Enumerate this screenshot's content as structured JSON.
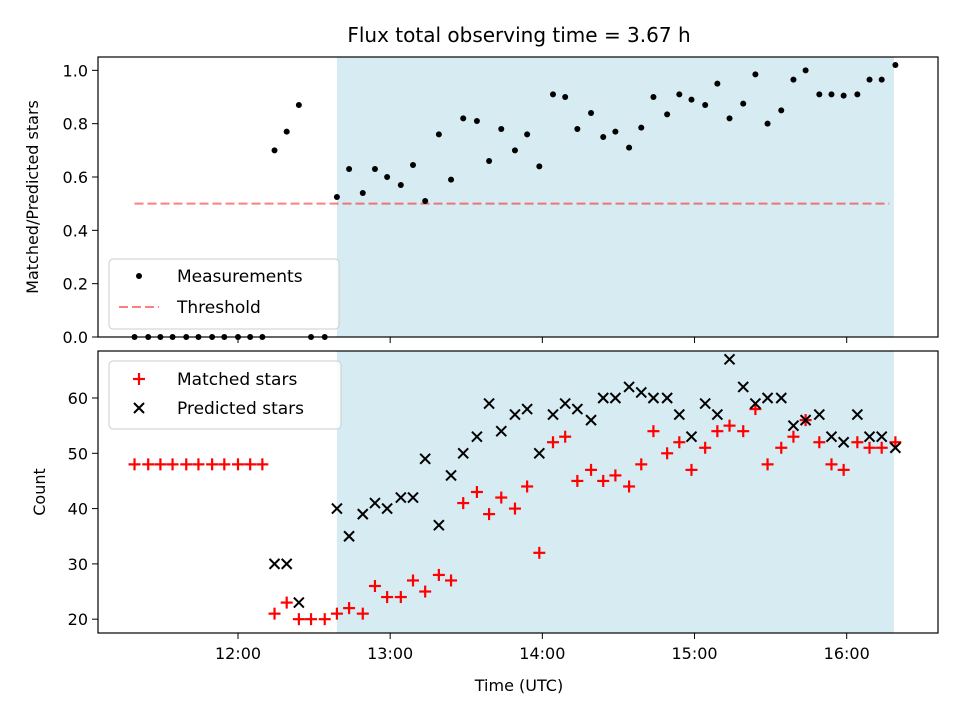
{
  "title": "Flux total observing time = 3.67 h",
  "colors": {
    "highlight": "#add8e6",
    "measurement": "#000000",
    "threshold": "#ff0000",
    "matched": "#ff0000",
    "predicted": "#000000"
  },
  "chart_data": [
    {
      "type": "scatter",
      "panel": "top",
      "ylabel": "Matched/Predicted stars",
      "xlim": [
        11.08,
        16.6
      ],
      "ylim": [
        0,
        1.05
      ],
      "yticks": [
        0.0,
        0.2,
        0.4,
        0.6,
        0.8,
        1.0
      ],
      "ytick_labels": [
        "0.0",
        "0.2",
        "0.4",
        "0.6",
        "0.8",
        "1.0"
      ],
      "xticks": [
        12,
        13,
        14,
        15,
        16
      ],
      "highlight_span": [
        12.65,
        16.31
      ],
      "legend": {
        "location": "lower-left",
        "entries": [
          "Measurements",
          "Threshold"
        ]
      },
      "threshold": {
        "name": "Threshold",
        "value": 0.5,
        "x_range": [
          11.32,
          16.28
        ]
      },
      "series": [
        {
          "name": "Measurements",
          "marker": "dot",
          "x": [
            11.32,
            11.41,
            11.49,
            11.57,
            11.66,
            11.74,
            11.83,
            11.91,
            12.0,
            12.08,
            12.16,
            12.24,
            12.32,
            12.4,
            12.48,
            12.57,
            12.65,
            12.73,
            12.82,
            12.9,
            12.98,
            13.07,
            13.15,
            13.23,
            13.32,
            13.4,
            13.48,
            13.57,
            13.65,
            13.73,
            13.82,
            13.9,
            13.98,
            14.07,
            14.15,
            14.23,
            14.32,
            14.4,
            14.48,
            14.57,
            14.65,
            14.73,
            14.82,
            14.9,
            14.98,
            15.07,
            15.15,
            15.23,
            15.32,
            15.4,
            15.48,
            15.57,
            15.65,
            15.73,
            15.82,
            15.9,
            15.98,
            16.07,
            16.15,
            16.23,
            16.32
          ],
          "y": [
            0,
            0,
            0,
            0,
            0,
            0,
            0,
            0,
            0,
            0,
            0,
            0.7,
            0.77,
            0.87,
            0,
            0,
            0.525,
            0.63,
            0.54,
            0.63,
            0.6,
            0.57,
            0.645,
            0.51,
            0.76,
            0.59,
            0.82,
            0.81,
            0.66,
            0.78,
            0.7,
            0.76,
            0.64,
            0.91,
            0.9,
            0.78,
            0.84,
            0.75,
            0.77,
            0.71,
            0.785,
            0.9,
            0.835,
            0.91,
            0.89,
            0.87,
            0.95,
            0.82,
            0.875,
            0.985,
            0.8,
            0.85,
            0.965,
            1.0,
            0.91,
            0.91,
            0.905,
            0.91,
            0.965,
            0.965,
            1.02
          ]
        }
      ]
    },
    {
      "type": "scatter",
      "panel": "bottom",
      "xlabel": "Time (UTC)",
      "ylabel": "Count",
      "xlim": [
        11.08,
        16.6
      ],
      "ylim": [
        17.5,
        68.5
      ],
      "yticks": [
        20,
        30,
        40,
        50,
        60
      ],
      "ytick_labels": [
        "20",
        "30",
        "40",
        "50",
        "60"
      ],
      "xticks": [
        12,
        13,
        14,
        15,
        16
      ],
      "xtick_labels": [
        "12:00",
        "13:00",
        "14:00",
        "15:00",
        "16:00"
      ],
      "highlight_span": [
        12.65,
        16.31
      ],
      "legend": {
        "location": "upper-left",
        "entries": [
          "Matched stars",
          "Predicted stars"
        ]
      },
      "series": [
        {
          "name": "Matched stars",
          "marker": "plus",
          "x": [
            11.32,
            11.41,
            11.49,
            11.57,
            11.66,
            11.74,
            11.83,
            11.91,
            12.0,
            12.08,
            12.16,
            12.24,
            12.32,
            12.4,
            12.48,
            12.57,
            12.65,
            12.73,
            12.82,
            12.9,
            12.98,
            13.07,
            13.15,
            13.23,
            13.32,
            13.4,
            13.48,
            13.57,
            13.65,
            13.73,
            13.82,
            13.9,
            13.98,
            14.07,
            14.15,
            14.23,
            14.32,
            14.4,
            14.48,
            14.57,
            14.65,
            14.73,
            14.82,
            14.9,
            14.98,
            15.07,
            15.15,
            15.23,
            15.32,
            15.4,
            15.48,
            15.57,
            15.65,
            15.73,
            15.82,
            15.9,
            15.98,
            16.07,
            16.15,
            16.23,
            16.32
          ],
          "y": [
            48,
            48,
            48,
            48,
            48,
            48,
            48,
            48,
            48,
            48,
            48,
            21,
            23,
            20,
            20,
            20,
            21,
            22,
            21,
            26,
            24,
            24,
            27,
            25,
            28,
            27,
            41,
            43,
            39,
            42,
            40,
            44,
            32,
            52,
            53,
            45,
            47,
            45,
            46,
            44,
            48,
            54,
            50,
            52,
            47,
            51,
            54,
            55,
            54,
            58,
            48,
            51,
            53,
            56,
            52,
            48,
            47,
            52,
            51,
            51,
            52
          ]
        },
        {
          "name": "Predicted stars",
          "marker": "x",
          "x": [
            12.24,
            12.32,
            12.4,
            12.65,
            12.73,
            12.82,
            12.9,
            12.98,
            13.07,
            13.15,
            13.23,
            13.32,
            13.4,
            13.48,
            13.57,
            13.65,
            13.73,
            13.82,
            13.9,
            13.98,
            14.07,
            14.15,
            14.23,
            14.32,
            14.4,
            14.48,
            14.57,
            14.65,
            14.73,
            14.82,
            14.9,
            14.98,
            15.07,
            15.15,
            15.23,
            15.32,
            15.4,
            15.48,
            15.57,
            15.65,
            15.73,
            15.82,
            15.9,
            15.98,
            16.07,
            16.15,
            16.23,
            16.32
          ],
          "y": [
            30,
            30,
            23,
            40,
            35,
            39,
            41,
            40,
            42,
            42,
            49,
            37,
            46,
            50,
            53,
            59,
            54,
            57,
            58,
            50,
            57,
            59,
            58,
            56,
            60,
            60,
            62,
            61,
            60,
            60,
            57,
            53,
            59,
            57,
            67,
            62,
            59,
            60,
            60,
            55,
            56,
            57,
            53,
            52,
            57,
            53,
            53,
            51
          ]
        }
      ]
    }
  ]
}
